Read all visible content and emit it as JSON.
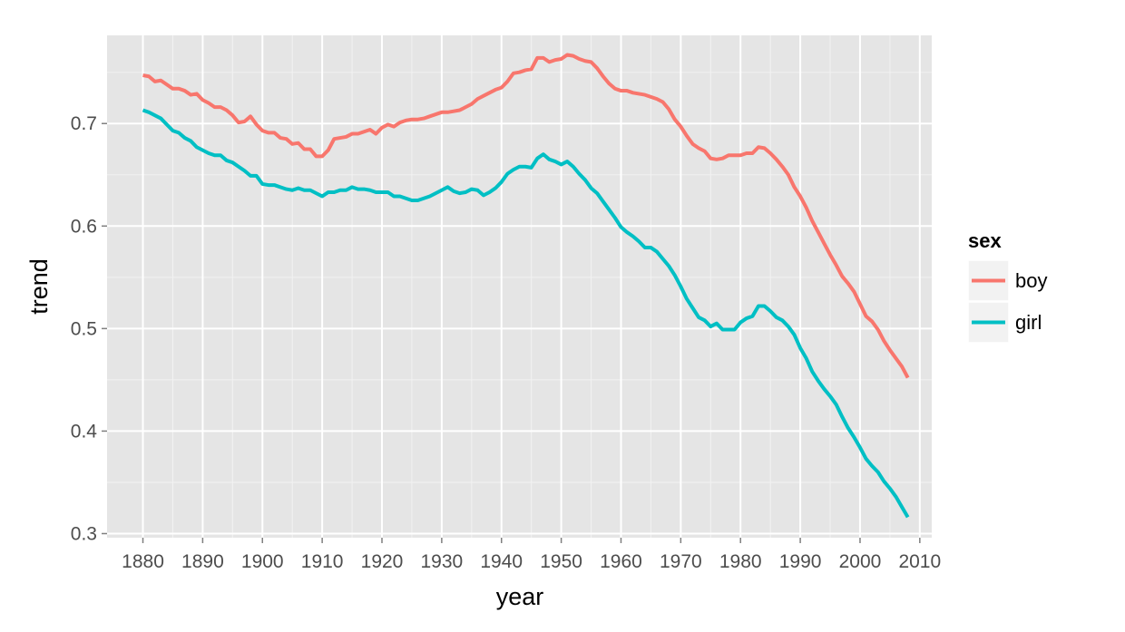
{
  "chart_data": {
    "type": "line",
    "xlabel": "year",
    "ylabel": "trend",
    "xlim": [
      1874,
      2012
    ],
    "ylim": [
      0.296,
      0.786
    ],
    "x_ticks": [
      1880,
      1890,
      1900,
      1910,
      1920,
      1930,
      1940,
      1950,
      1960,
      1970,
      1980,
      1990,
      2000,
      2010
    ],
    "x_tick_labels": [
      "1880",
      "1890",
      "1900",
      "1910",
      "1920",
      "1930",
      "1940",
      "1950",
      "1960",
      "1970",
      "1980",
      "1990",
      "2000",
      "2010"
    ],
    "y_ticks": [
      0.3,
      0.4,
      0.5,
      0.6,
      0.7
    ],
    "y_tick_labels": [
      "0.3",
      "0.4",
      "0.5",
      "0.6",
      "0.7"
    ],
    "grid": true,
    "legend": {
      "title": "sex",
      "position": "right"
    },
    "series": [
      {
        "name": "boy",
        "color": "#F8766D",
        "x": [
          1880,
          1881,
          1882,
          1883,
          1884,
          1885,
          1886,
          1887,
          1888,
          1889,
          1890,
          1891,
          1892,
          1893,
          1894,
          1895,
          1896,
          1897,
          1898,
          1899,
          1900,
          1901,
          1902,
          1903,
          1904,
          1905,
          1906,
          1907,
          1908,
          1909,
          1910,
          1911,
          1912,
          1913,
          1914,
          1915,
          1916,
          1917,
          1918,
          1919,
          1920,
          1921,
          1922,
          1923,
          1924,
          1925,
          1926,
          1927,
          1928,
          1929,
          1930,
          1931,
          1932,
          1933,
          1934,
          1935,
          1936,
          1937,
          1938,
          1939,
          1940,
          1941,
          1942,
          1943,
          1944,
          1945,
          1946,
          1947,
          1948,
          1949,
          1950,
          1951,
          1952,
          1953,
          1954,
          1955,
          1956,
          1957,
          1958,
          1959,
          1960,
          1961,
          1962,
          1963,
          1964,
          1965,
          1966,
          1967,
          1968,
          1969,
          1970,
          1971,
          1972,
          1973,
          1974,
          1975,
          1976,
          1977,
          1978,
          1979,
          1980,
          1981,
          1982,
          1983,
          1984,
          1985,
          1986,
          1987,
          1988,
          1989,
          1990,
          1991,
          1992,
          1993,
          1994,
          1995,
          1996,
          1997,
          1998,
          1999,
          2000,
          2001,
          2002,
          2003,
          2004,
          2005,
          2006,
          2007,
          2008
        ],
        "y": [
          0.747,
          0.746,
          0.741,
          0.742,
          0.738,
          0.734,
          0.734,
          0.732,
          0.728,
          0.729,
          0.723,
          0.72,
          0.716,
          0.716,
          0.713,
          0.708,
          0.701,
          0.702,
          0.707,
          0.699,
          0.693,
          0.691,
          0.691,
          0.686,
          0.685,
          0.68,
          0.681,
          0.675,
          0.675,
          0.668,
          0.668,
          0.674,
          0.685,
          0.686,
          0.687,
          0.69,
          0.69,
          0.692,
          0.694,
          0.69,
          0.696,
          0.699,
          0.697,
          0.701,
          0.703,
          0.704,
          0.704,
          0.705,
          0.707,
          0.709,
          0.711,
          0.711,
          0.712,
          0.713,
          0.716,
          0.719,
          0.724,
          0.727,
          0.73,
          0.733,
          0.735,
          0.741,
          0.749,
          0.75,
          0.752,
          0.753,
          0.764,
          0.764,
          0.76,
          0.762,
          0.763,
          0.767,
          0.766,
          0.763,
          0.761,
          0.76,
          0.754,
          0.746,
          0.739,
          0.734,
          0.732,
          0.732,
          0.73,
          0.729,
          0.728,
          0.726,
          0.724,
          0.721,
          0.714,
          0.704,
          0.697,
          0.688,
          0.68,
          0.676,
          0.673,
          0.666,
          0.665,
          0.666,
          0.669,
          0.669,
          0.669,
          0.671,
          0.671,
          0.677,
          0.676,
          0.671,
          0.665,
          0.658,
          0.65,
          0.638,
          0.629,
          0.618,
          0.605,
          0.594,
          0.583,
          0.572,
          0.562,
          0.551,
          0.544,
          0.536,
          0.524,
          0.512,
          0.507,
          0.499,
          0.488,
          0.479,
          0.471,
          0.463,
          0.452
        ]
      },
      {
        "name": "girl",
        "color": "#00BFC4",
        "x": [
          1880,
          1881,
          1882,
          1883,
          1884,
          1885,
          1886,
          1887,
          1888,
          1889,
          1890,
          1891,
          1892,
          1893,
          1894,
          1895,
          1896,
          1897,
          1898,
          1899,
          1900,
          1901,
          1902,
          1903,
          1904,
          1905,
          1906,
          1907,
          1908,
          1909,
          1910,
          1911,
          1912,
          1913,
          1914,
          1915,
          1916,
          1917,
          1918,
          1919,
          1920,
          1921,
          1922,
          1923,
          1924,
          1925,
          1926,
          1927,
          1928,
          1929,
          1930,
          1931,
          1932,
          1933,
          1934,
          1935,
          1936,
          1937,
          1938,
          1939,
          1940,
          1941,
          1942,
          1943,
          1944,
          1945,
          1946,
          1947,
          1948,
          1949,
          1950,
          1951,
          1952,
          1953,
          1954,
          1955,
          1956,
          1957,
          1958,
          1959,
          1960,
          1961,
          1962,
          1963,
          1964,
          1965,
          1966,
          1967,
          1968,
          1969,
          1970,
          1971,
          1972,
          1973,
          1974,
          1975,
          1976,
          1977,
          1978,
          1979,
          1980,
          1981,
          1982,
          1983,
          1984,
          1985,
          1986,
          1987,
          1988,
          1989,
          1990,
          1991,
          1992,
          1993,
          1994,
          1995,
          1996,
          1997,
          1998,
          1999,
          2000,
          2001,
          2002,
          2003,
          2004,
          2005,
          2006,
          2007,
          2008
        ],
        "y": [
          0.713,
          0.711,
          0.708,
          0.705,
          0.699,
          0.693,
          0.691,
          0.686,
          0.683,
          0.677,
          0.674,
          0.671,
          0.669,
          0.669,
          0.664,
          0.662,
          0.658,
          0.654,
          0.649,
          0.649,
          0.641,
          0.64,
          0.64,
          0.638,
          0.636,
          0.635,
          0.637,
          0.635,
          0.635,
          0.632,
          0.629,
          0.633,
          0.633,
          0.635,
          0.635,
          0.638,
          0.636,
          0.636,
          0.635,
          0.633,
          0.633,
          0.633,
          0.629,
          0.629,
          0.627,
          0.625,
          0.625,
          0.627,
          0.629,
          0.632,
          0.635,
          0.638,
          0.634,
          0.632,
          0.633,
          0.636,
          0.635,
          0.63,
          0.633,
          0.637,
          0.643,
          0.651,
          0.655,
          0.658,
          0.658,
          0.657,
          0.666,
          0.67,
          0.665,
          0.663,
          0.66,
          0.663,
          0.658,
          0.651,
          0.645,
          0.637,
          0.632,
          0.624,
          0.616,
          0.608,
          0.599,
          0.594,
          0.59,
          0.585,
          0.579,
          0.579,
          0.575,
          0.568,
          0.561,
          0.552,
          0.541,
          0.529,
          0.52,
          0.511,
          0.508,
          0.502,
          0.505,
          0.499,
          0.499,
          0.499,
          0.506,
          0.51,
          0.512,
          0.522,
          0.522,
          0.517,
          0.511,
          0.508,
          0.502,
          0.494,
          0.481,
          0.471,
          0.458,
          0.449,
          0.441,
          0.434,
          0.426,
          0.414,
          0.403,
          0.394,
          0.384,
          0.373,
          0.366,
          0.36,
          0.351,
          0.344,
          0.336,
          0.326,
          0.316
        ]
      }
    ]
  }
}
